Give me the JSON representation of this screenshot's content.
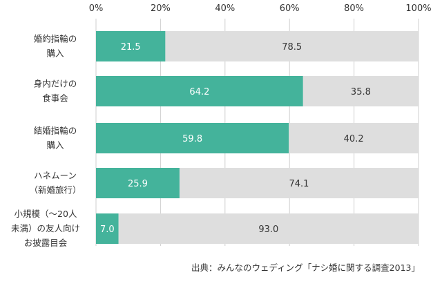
{
  "chart_data": {
    "type": "bar",
    "orientation": "horizontal",
    "stacked": true,
    "xlim": [
      0,
      100
    ],
    "x_ticks": [
      "0%",
      "20%",
      "40%",
      "60%",
      "80%",
      "100%"
    ],
    "grid": true,
    "categories": [
      [
        "婚約指輪の",
        "購入"
      ],
      [
        "身内だけの",
        "食事会"
      ],
      [
        "結婚指輪の",
        "購入"
      ],
      [
        "ハネムーン",
        "（新婚旅行）"
      ],
      [
        "小規模（～20人",
        "未満）の友人向け",
        "お披露目会"
      ]
    ],
    "series": [
      {
        "values": [
          21.5,
          64.2,
          59.8,
          25.9,
          7.0
        ],
        "labels": [
          "21.5",
          "64.2",
          "59.8",
          "25.9",
          "7.0"
        ],
        "color": "#44b39b"
      },
      {
        "values": [
          78.5,
          35.8,
          40.2,
          74.1,
          93.0
        ],
        "labels": [
          "78.5",
          "35.8",
          "40.2",
          "74.1",
          "93.0"
        ],
        "color": "#dedede"
      }
    ],
    "source": "出典：みんなのウェディング「ナシ婚に関する調査2013」"
  }
}
